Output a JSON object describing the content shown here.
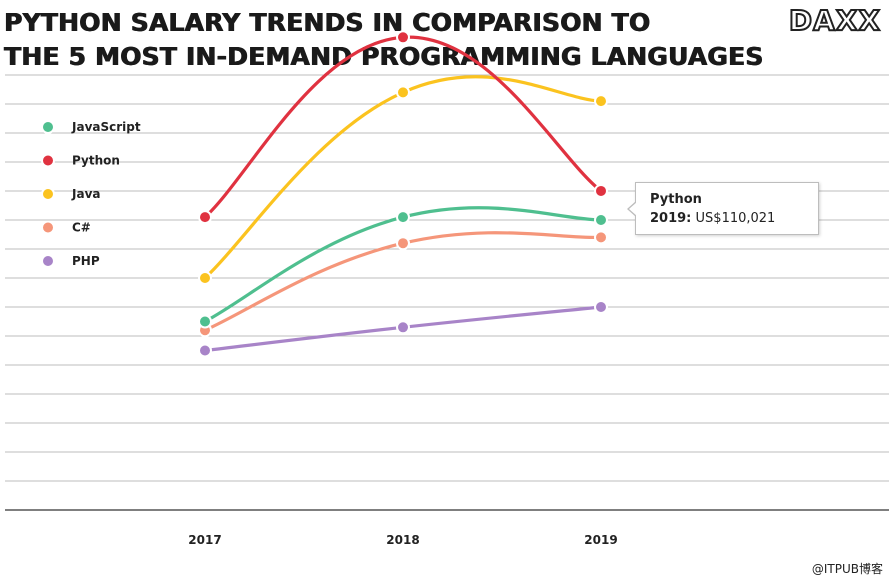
{
  "header": {
    "title_line1": "PYTHON SALARY TRENDS IN COMPARISON TO",
    "title_line2": "THE 5 MOST IN-DEMAND PROGRAMMING LANGUAGES",
    "logo": "DAXX"
  },
  "watermark": "@ITPUB博客",
  "tooltip": {
    "series": "Python",
    "year": "2019:",
    "value": "US$110,021"
  },
  "chart_data": {
    "type": "line",
    "title": "PYTHON SALARY TRENDS IN COMPARISON TO THE 5 MOST IN-DEMAND PROGRAMMING LANGUAGES",
    "xlabel": "",
    "ylabel": "",
    "x": [
      "2017",
      "2018",
      "2019"
    ],
    "ylim": [
      0,
      150000
    ],
    "grid": true,
    "legend_position": "top-left",
    "series": [
      {
        "name": "JavaScript",
        "color": "#4fbf8f",
        "values": [
          65000,
          101000,
          100000
        ]
      },
      {
        "name": "Python",
        "color": "#e03240",
        "values": [
          101000,
          163000,
          110021
        ]
      },
      {
        "name": "Java",
        "color": "#fbc31f",
        "values": [
          80000,
          144000,
          141000
        ]
      },
      {
        "name": "C#",
        "color": "#f5967a",
        "values": [
          62000,
          92000,
          94000
        ]
      },
      {
        "name": "PHP",
        "color": "#a884c8",
        "values": [
          55000,
          63000,
          70000
        ]
      }
    ]
  }
}
